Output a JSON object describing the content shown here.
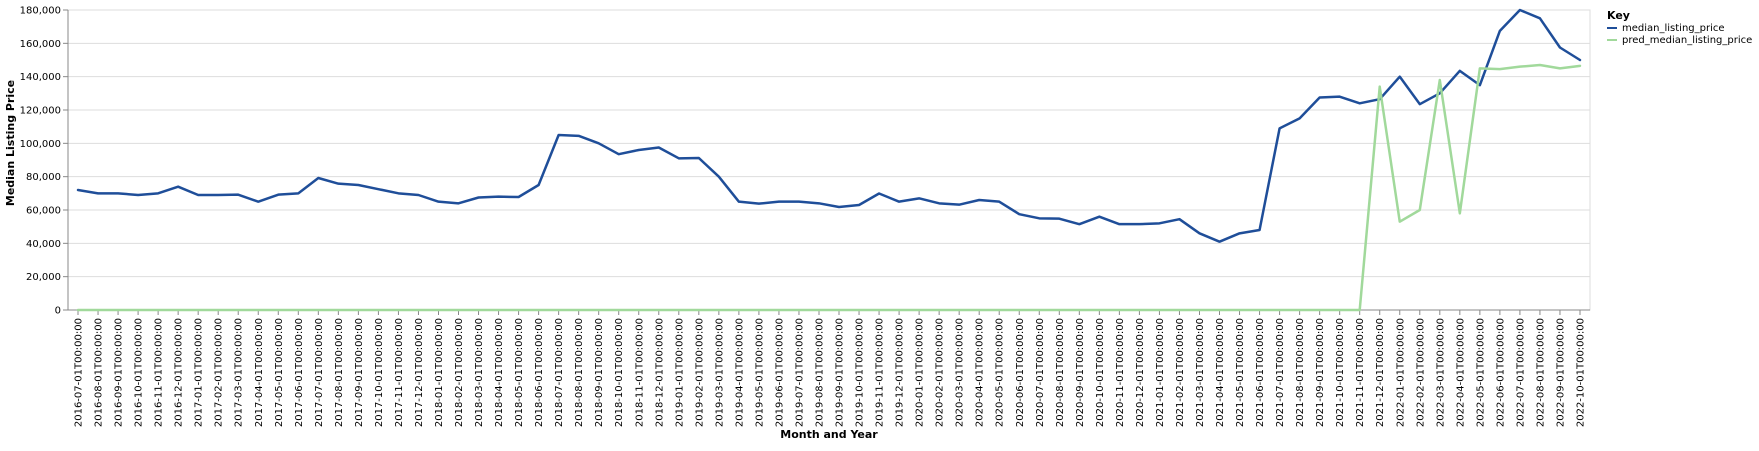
{
  "chart_data": {
    "type": "line",
    "xlabel": "Month and Year",
    "ylabel": "Median Listing Price",
    "ylim": [
      0,
      180000
    ],
    "yticks": [
      0,
      20000,
      40000,
      60000,
      80000,
      100000,
      120000,
      140000,
      160000,
      180000
    ],
    "ytick_labels": [
      "0",
      "20,000",
      "40,000",
      "60,000",
      "80,000",
      "100,000",
      "120,000",
      "140,000",
      "160,000",
      "180,000"
    ],
    "grid": true,
    "legend": {
      "title": "Key",
      "placement": "top-right"
    },
    "categories": [
      "2016-07-01T00:00:00",
      "2016-08-01T00:00:00",
      "2016-09-01T00:00:00",
      "2016-10-01T00:00:00",
      "2016-11-01T00:00:00",
      "2016-12-01T00:00:00",
      "2017-01-01T00:00:00",
      "2017-02-01T00:00:00",
      "2017-03-01T00:00:00",
      "2017-04-01T00:00:00",
      "2017-05-01T00:00:00",
      "2017-06-01T00:00:00",
      "2017-07-01T00:00:00",
      "2017-08-01T00:00:00",
      "2017-09-01T00:00:00",
      "2017-10-01T00:00:00",
      "2017-11-01T00:00:00",
      "2017-12-01T00:00:00",
      "2018-01-01T00:00:00",
      "2018-02-01T00:00:00",
      "2018-03-01T00:00:00",
      "2018-04-01T00:00:00",
      "2018-05-01T00:00:00",
      "2018-06-01T00:00:00",
      "2018-07-01T00:00:00",
      "2018-08-01T00:00:00",
      "2018-09-01T00:00:00",
      "2018-10-01T00:00:00",
      "2018-11-01T00:00:00",
      "2018-12-01T00:00:00",
      "2019-01-01T00:00:00",
      "2019-02-01T00:00:00",
      "2019-03-01T00:00:00",
      "2019-04-01T00:00:00",
      "2019-05-01T00:00:00",
      "2019-06-01T00:00:00",
      "2019-07-01T00:00:00",
      "2019-08-01T00:00:00",
      "2019-09-01T00:00:00",
      "2019-10-01T00:00:00",
      "2019-11-01T00:00:00",
      "2019-12-01T00:00:00",
      "2020-01-01T00:00:00",
      "2020-02-01T00:00:00",
      "2020-03-01T00:00:00",
      "2020-04-01T00:00:00",
      "2020-05-01T00:00:00",
      "2020-06-01T00:00:00",
      "2020-07-01T00:00:00",
      "2020-08-01T00:00:00",
      "2020-09-01T00:00:00",
      "2020-10-01T00:00:00",
      "2020-11-01T00:00:00",
      "2020-12-01T00:00:00",
      "2021-01-01T00:00:00",
      "2021-02-01T00:00:00",
      "2021-03-01T00:00:00",
      "2021-04-01T00:00:00",
      "2021-05-01T00:00:00",
      "2021-06-01T00:00:00",
      "2021-07-01T00:00:00",
      "2021-08-01T00:00:00",
      "2021-09-01T00:00:00",
      "2021-10-01T00:00:00",
      "2021-11-01T00:00:00",
      "2021-12-01T00:00:00",
      "2022-01-01T00:00:00",
      "2022-02-01T00:00:00",
      "2022-03-01T00:00:00",
      "2022-04-01T00:00:00",
      "2022-05-01T00:00:00",
      "2022-06-01T00:00:00",
      "2022-07-01T00:00:00",
      "2022-08-01T00:00:00",
      "2022-09-01T00:00:00",
      "2022-10-01T00:00:00"
    ],
    "series": [
      {
        "name": "median_listing_price",
        "color": "#1f4e99",
        "values": [
          72000,
          70000,
          70000,
          69000,
          70000,
          74000,
          69000,
          69000,
          69200,
          65000,
          69200,
          70000,
          79200,
          75800,
          75000,
          72500,
          70000,
          69000,
          65000,
          64000,
          67500,
          68000,
          67800,
          75000,
          105000,
          104500,
          100000,
          93500,
          96000,
          97500,
          91000,
          91200,
          80000,
          65000,
          63800,
          65000,
          65000,
          64000,
          61800,
          63000,
          69900,
          65000,
          67000,
          64000,
          63200,
          66000,
          65000,
          57500,
          55000,
          54800,
          51500,
          56000,
          51500,
          51500,
          52000,
          54500,
          46000,
          41000,
          46000,
          48000,
          109000,
          115000,
          127500,
          128000,
          124000,
          126500,
          140000,
          123500,
          130000,
          143500,
          134900,
          167500,
          180000,
          175000,
          157500,
          150000
        ]
      },
      {
        "name": "pred_median_listing_price",
        "color": "#a1d99b",
        "values": [
          0,
          0,
          0,
          0,
          0,
          0,
          0,
          0,
          0,
          0,
          0,
          0,
          0,
          0,
          0,
          0,
          0,
          0,
          0,
          0,
          0,
          0,
          0,
          0,
          0,
          0,
          0,
          0,
          0,
          0,
          0,
          0,
          0,
          0,
          0,
          0,
          0,
          0,
          0,
          0,
          0,
          0,
          0,
          0,
          0,
          0,
          0,
          0,
          0,
          0,
          0,
          0,
          0,
          0,
          0,
          0,
          0,
          0,
          0,
          0,
          0,
          0,
          0,
          0,
          0,
          134000,
          53000,
          60000,
          138000,
          58000,
          145000,
          144500,
          146000,
          147000,
          145000,
          146500
        ]
      }
    ]
  }
}
